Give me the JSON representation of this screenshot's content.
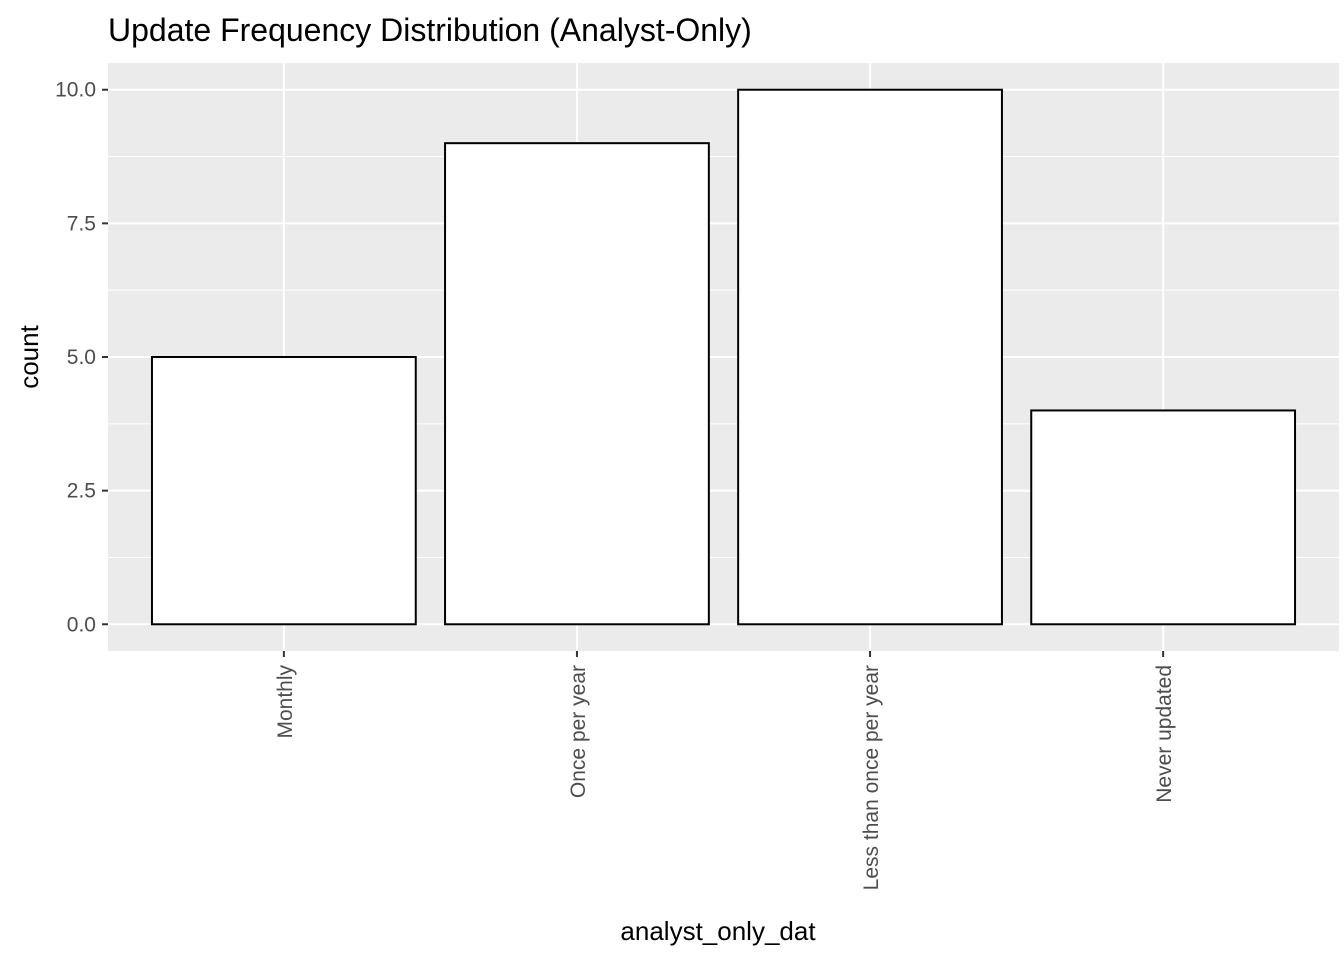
{
  "chart_data": {
    "type": "bar",
    "title": "Update Frequency Distribution (Analyst-Only)",
    "xlabel": "analyst_only_dat",
    "ylabel": "count",
    "categories": [
      "Monthly",
      "Once per year",
      "Less than once per year",
      "Never updated"
    ],
    "values": [
      5,
      9,
      10,
      4
    ],
    "ylim": [
      -0.5,
      10.5
    ],
    "yticks": [
      0,
      2.5,
      5,
      7.5,
      10
    ],
    "ytick_labels": [
      "0.0",
      "2.5",
      "5.0",
      "7.5",
      "10.0"
    ],
    "grid": true,
    "x_tick_rotation": "vertical",
    "colors": {
      "panel": "#ebebeb",
      "grid_major": "#ffffff",
      "bar_fill": "#ffffff",
      "bar_stroke": "#000000",
      "tick": "#333333",
      "tick_text": "#4d4d4d"
    }
  }
}
